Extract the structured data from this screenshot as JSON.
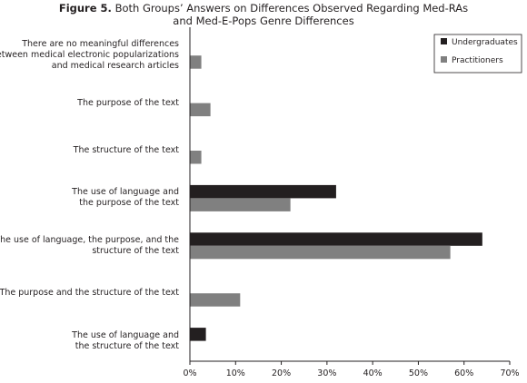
{
  "chart_data": {
    "type": "bar",
    "orientation": "horizontal",
    "title_prefix": "Figure 5.",
    "title": "Both Groups’ Answers on Differences Observed Regarding Med-RAs",
    "title_line2": "and Med-E-Pops Genre Differences",
    "categories": [
      "There are no meaningful differences between medical electronic popularizations and medical research articles",
      "The purpose of the text",
      "The structure of the text",
      "The use of language and the purpose of the text",
      "The use of language, the purpose, and the structure of the text",
      "The purpose and the structure of the text",
      "The use of language and the structure of the text"
    ],
    "category_lines": [
      [
        "There are no meaningful differences",
        "between medical electronic popularizations",
        "and medical research articles"
      ],
      [
        "The purpose of the text"
      ],
      [
        "The structure of the text"
      ],
      [
        "The use of language and",
        "the purpose of the text"
      ],
      [
        "The use of language, the purpose, and the",
        "structure of the text"
      ],
      [
        "The purpose and the structure of the text"
      ],
      [
        "The use of language and",
        "the structure of the text"
      ]
    ],
    "series": [
      {
        "name": "Undergraduates",
        "color": "#231f20",
        "values": [
          0,
          0,
          0,
          32,
          64,
          0,
          3.5
        ]
      },
      {
        "name": "Practitioners",
        "color": "#808080",
        "values": [
          2.5,
          4.5,
          2.5,
          22,
          57,
          11,
          0
        ]
      }
    ],
    "xlim": [
      0,
      70
    ],
    "xticks": [
      "0%",
      "10%",
      "20%",
      "30%",
      "40%",
      "50%",
      "60%",
      "70%"
    ],
    "xtick_values": [
      0,
      10,
      20,
      30,
      40,
      50,
      60,
      70
    ],
    "grid": false,
    "legend_position": "top-right"
  }
}
